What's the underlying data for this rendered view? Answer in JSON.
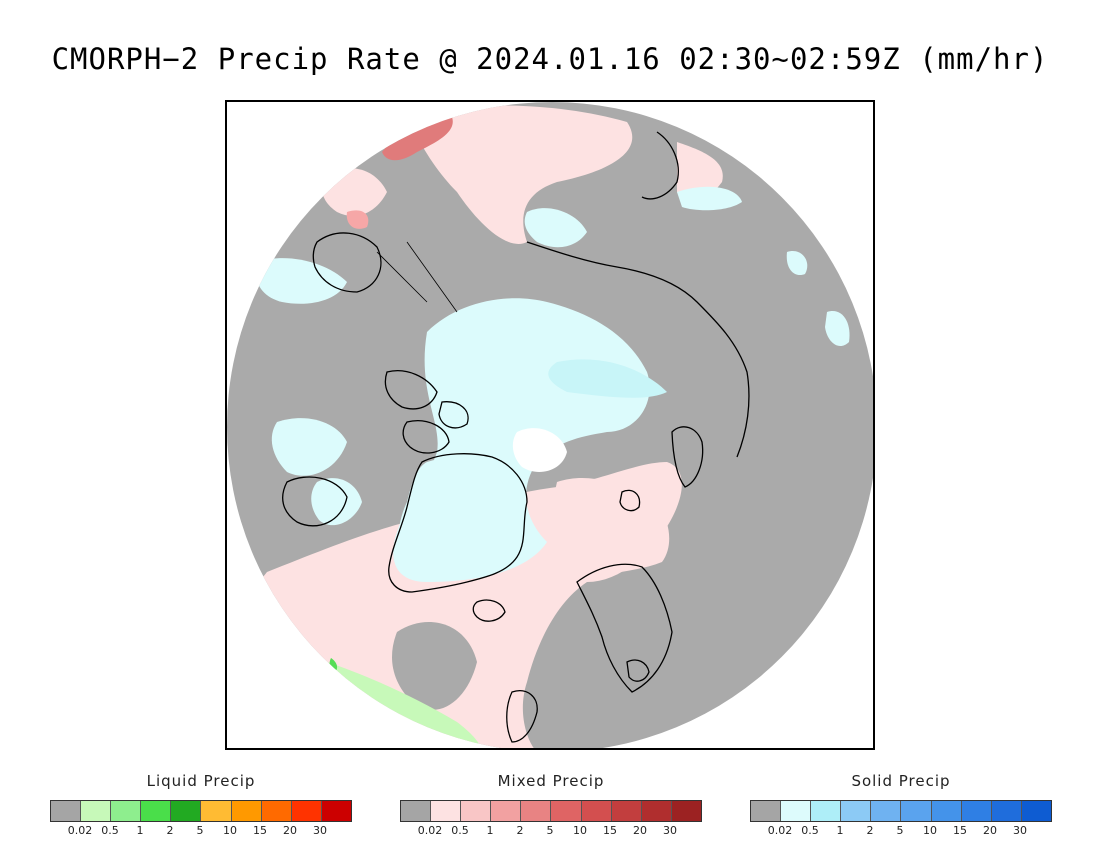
{
  "title": "CMORPH−2 Precip Rate @ 2024.01.16 02:30∼02:59Z (mm/hr)",
  "map": {
    "projection": "polar-stereographic-north",
    "colors": {
      "no_precip": "#aaaaaa",
      "mixed_light": "#fde2e2",
      "mixed_moderate": "#f6a7a7",
      "mixed_heavy": "#e07b7b",
      "solid_light": "#dcfbfc",
      "solid_moderate": "#c8f5f8",
      "liquid_light": "#c7f9b9",
      "liquid_moderate": "#55dd55",
      "coastline": "#000000",
      "outside": "#ffffff"
    }
  },
  "legends": [
    {
      "title": "Liquid Precip",
      "colors": [
        "#a5a5a5",
        "#c7f9b9",
        "#8eee8e",
        "#4ade4a",
        "#22aa22",
        "#ffbb33",
        "#ff9900",
        "#ff6a00",
        "#ff3300",
        "#cc0000"
      ],
      "ticks": [
        "0.02",
        "0.5",
        "1",
        "2",
        "5",
        "10",
        "15",
        "20",
        "30"
      ]
    },
    {
      "title": "Mixed Precip",
      "colors": [
        "#a5a5a5",
        "#fde2e2",
        "#f9c6c6",
        "#f2a1a1",
        "#e88383",
        "#df6464",
        "#d34f4f",
        "#c23e3e",
        "#b02e2e",
        "#9c2222"
      ],
      "ticks": [
        "0.02",
        "0.5",
        "1",
        "2",
        "5",
        "10",
        "15",
        "20",
        "30"
      ]
    },
    {
      "title": "Solid Precip",
      "colors": [
        "#a5a5a5",
        "#ddfbfc",
        "#aeeef8",
        "#8ccaf5",
        "#6fb2f1",
        "#5aa3ee",
        "#4493ea",
        "#2f7fe4",
        "#1f6ddc",
        "#0e5cd2"
      ],
      "ticks": [
        "0.02",
        "0.5",
        "1",
        "2",
        "5",
        "10",
        "15",
        "20",
        "30"
      ]
    }
  ]
}
